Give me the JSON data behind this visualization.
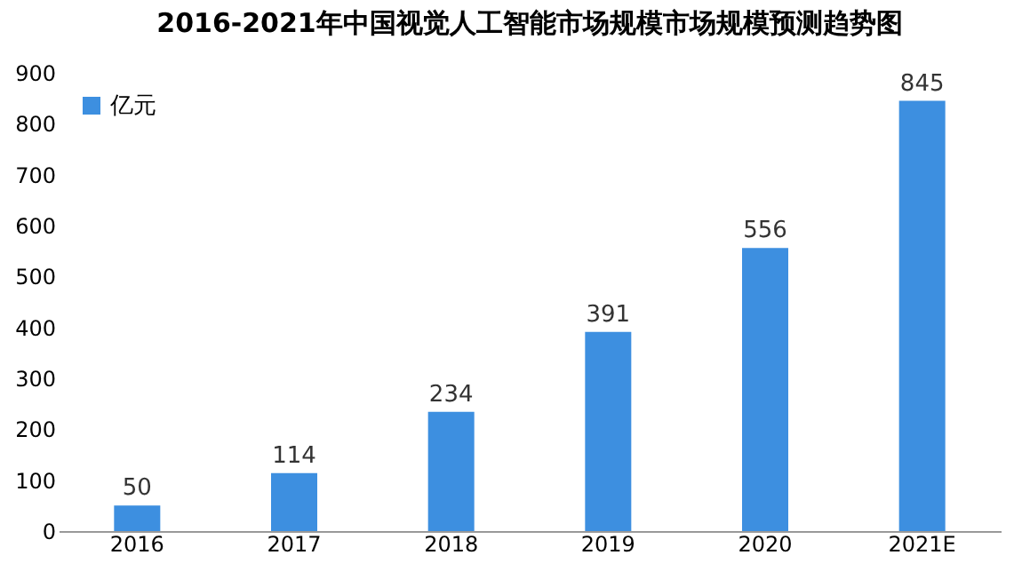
{
  "chart_data": {
    "type": "bar",
    "title": "2016-2021年中国视觉人工智能市场规模市场规模预测趋势图",
    "categories": [
      "2016",
      "2017",
      "2018",
      "2019",
      "2020",
      "2021E"
    ],
    "series": [
      {
        "name": "亿元",
        "color": "#3d8fe0",
        "values": [
          50,
          114,
          234,
          391,
          556,
          845
        ]
      }
    ],
    "ylim": [
      0,
      900
    ],
    "yticks": [
      0,
      100,
      200,
      300,
      400,
      500,
      600,
      700,
      800,
      900
    ],
    "data_labels": true,
    "grid": false,
    "legend": "top left"
  }
}
